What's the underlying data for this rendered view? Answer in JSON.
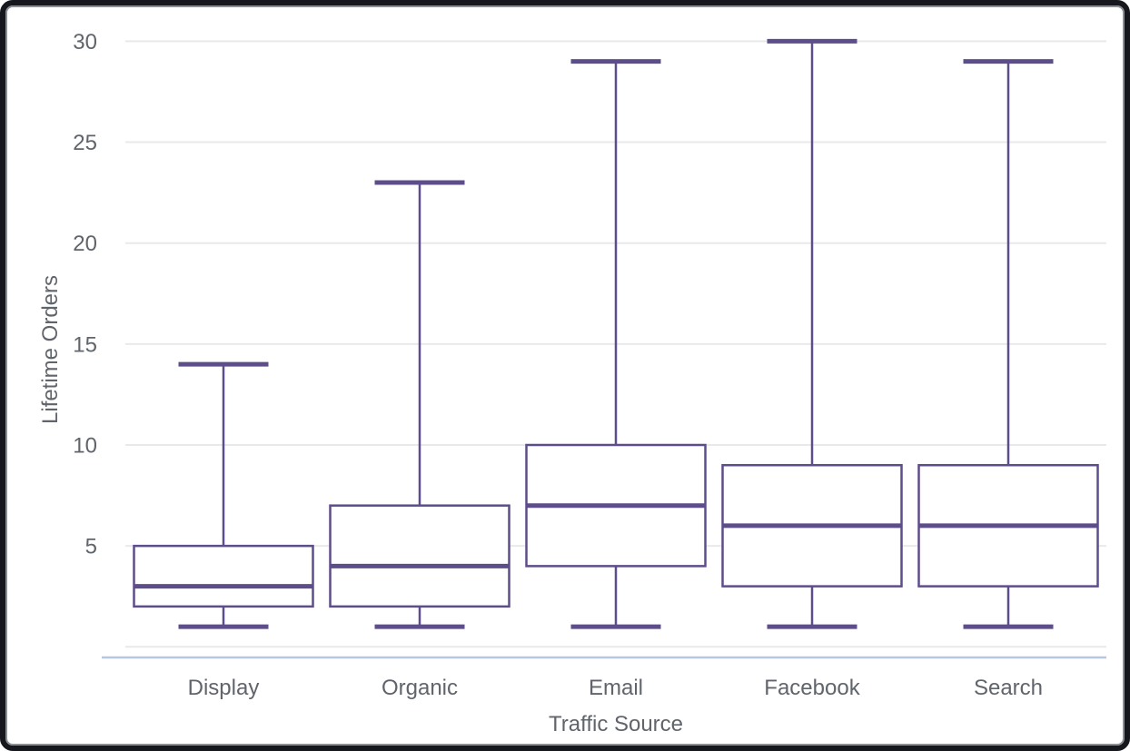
{
  "window": {
    "background": "#ffffff",
    "frame_border_color": "#17181d"
  },
  "chart_data": {
    "type": "box",
    "title": "",
    "xlabel": "Traffic Source",
    "ylabel": "Lifetime Orders",
    "categories": [
      "Display",
      "Organic",
      "Email",
      "Facebook",
      "Search"
    ],
    "series": [
      {
        "name": "Display",
        "min": 1,
        "q1": 2,
        "median": 3,
        "q3": 5,
        "max": 14
      },
      {
        "name": "Organic",
        "min": 1,
        "q1": 2,
        "median": 4,
        "q3": 7,
        "max": 23
      },
      {
        "name": "Email",
        "min": 1,
        "q1": 4,
        "median": 7,
        "q3": 10,
        "max": 29
      },
      {
        "name": "Facebook",
        "min": 1,
        "q1": 3,
        "median": 6,
        "q3": 9,
        "max": 30
      },
      {
        "name": "Search",
        "min": 1,
        "q1": 3,
        "median": 6,
        "q3": 9,
        "max": 29
      }
    ],
    "y_ticks": [
      5,
      10,
      15,
      20,
      25,
      30
    ],
    "y_gridlines": [
      0,
      5,
      10,
      15,
      20,
      25,
      30
    ],
    "ylim": [
      0,
      31
    ],
    "grid": true,
    "legend": "none",
    "colors": {
      "box_stroke": "#5e4d8b",
      "box_fill": "#ffffff",
      "gridline": "#e9e9e9",
      "axis_line": "#b9c7e2",
      "text": "#60646b"
    }
  }
}
